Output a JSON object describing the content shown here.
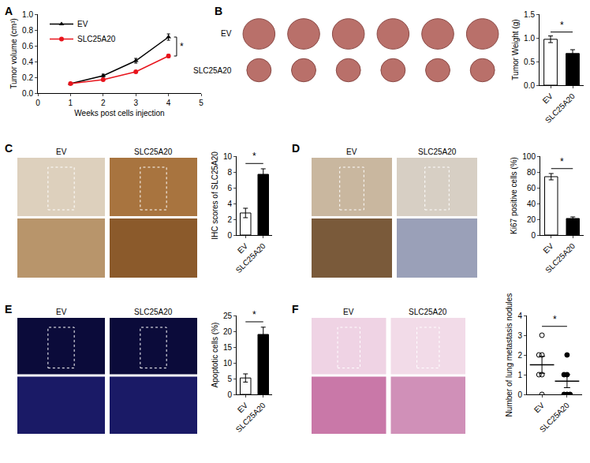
{
  "chart_data": [
    {
      "title": "A",
      "type": "line",
      "x": [
        1,
        2,
        3,
        4
      ],
      "xlabel": "Weeks post cells injection",
      "ylabel": "Tumor volume (cm³)",
      "xlim": [
        0,
        5
      ],
      "xticks": [
        0,
        1,
        2,
        3,
        4,
        5
      ],
      "ylim": [
        0,
        1.0
      ],
      "yticks": [
        {
          "value": 0,
          "label": "0.0"
        },
        {
          "value": 0.2,
          "label": "0.2"
        },
        {
          "value": 0.4,
          "label": "0.4"
        },
        {
          "value": 0.6,
          "label": "0.6"
        },
        {
          "value": 0.8,
          "label": "0.8"
        },
        {
          "value": 1.0,
          "label": "1.0"
        }
      ],
      "series": [
        {
          "name": "EV",
          "color": "#000000",
          "marker": "triangle-up",
          "values": [
            0.12,
            0.22,
            0.41,
            0.71
          ],
          "errors": [
            0.01,
            0.02,
            0.03,
            0.04
          ]
        },
        {
          "name": "SLC25A20",
          "color": "#e8141c",
          "marker": "circle",
          "values": [
            0.12,
            0.17,
            0.27,
            0.47
          ],
          "errors": [
            0.01,
            0.01,
            0.015,
            0.02
          ]
        }
      ],
      "annotations": [
        "*"
      ],
      "legend": "upper left"
    },
    {
      "title": "B",
      "type": "bar",
      "image_labels": [
        "EV",
        "SLC25A20"
      ],
      "categories": [
        "EV",
        "SLC25A20"
      ],
      "values": [
        0.97,
        0.67
      ],
      "errors": [
        0.07,
        0.08
      ],
      "colors": [
        "#ffffff",
        "#000000"
      ],
      "ylabel": "Tumor Weight (g)",
      "ylim": [
        0,
        1.5
      ],
      "yticks": [
        {
          "value": 0,
          "label": "0.0"
        },
        {
          "value": 0.5,
          "label": "0.5"
        },
        {
          "value": 1.0,
          "label": "1.0"
        },
        {
          "value": 1.5,
          "label": "1.5"
        }
      ],
      "annotations": [
        "*"
      ]
    },
    {
      "title": "C",
      "type": "bar",
      "image_labels": [
        "EV",
        "SLC25A20"
      ],
      "categories": [
        "EV",
        "SLC25A20"
      ],
      "values": [
        2.8,
        7.7
      ],
      "errors": [
        0.6,
        0.7
      ],
      "colors": [
        "#ffffff",
        "#000000"
      ],
      "ylabel": "IHC scores of SLC25A20",
      "ylim": [
        0,
        10
      ],
      "yticks": [
        0,
        2,
        4,
        6,
        8,
        10
      ],
      "annotations": [
        "*"
      ]
    },
    {
      "title": "D",
      "type": "bar",
      "image_labels": [
        "EV",
        "SLC25A20"
      ],
      "categories": [
        "EV",
        "SLC25A20"
      ],
      "values": [
        74,
        21
      ],
      "errors": [
        4,
        2
      ],
      "colors": [
        "#ffffff",
        "#000000"
      ],
      "ylabel": "Ki67 positive cells (%)",
      "ylim": [
        0,
        100
      ],
      "yticks": [
        0,
        20,
        40,
        60,
        80,
        100
      ],
      "annotations": [
        "*"
      ]
    },
    {
      "title": "E",
      "type": "bar",
      "image_labels": [
        "EV",
        "SLC25A20"
      ],
      "categories": [
        "EV",
        "SLC25A20"
      ],
      "values": [
        5.2,
        19
      ],
      "errors": [
        1.3,
        2.3
      ],
      "colors": [
        "#ffffff",
        "#000000"
      ],
      "ylabel": "Apoptotic cells (%)",
      "ylim": [
        0,
        25
      ],
      "yticks": [
        0,
        5,
        10,
        15,
        20,
        25
      ],
      "annotations": [
        "*"
      ]
    },
    {
      "title": "F",
      "type": "scatter",
      "image_labels": [
        "EV",
        "SLC25A20"
      ],
      "ylabel": "Number of lung metastasis nodules",
      "ylim": [
        0,
        4
      ],
      "yticks": [
        0,
        1,
        2,
        3,
        4
      ],
      "series": [
        {
          "name": "EV",
          "marker": "circle-open",
          "points": [
            3,
            2,
            2,
            1,
            1,
            0
          ],
          "mean": 1.5,
          "error": 0.43
        },
        {
          "name": "SLC25A20",
          "marker": "circle",
          "points": [
            2,
            1,
            1,
            0,
            0,
            0
          ],
          "mean": 0.67,
          "error": 0.33
        }
      ],
      "annotations": [
        "*"
      ]
    }
  ]
}
